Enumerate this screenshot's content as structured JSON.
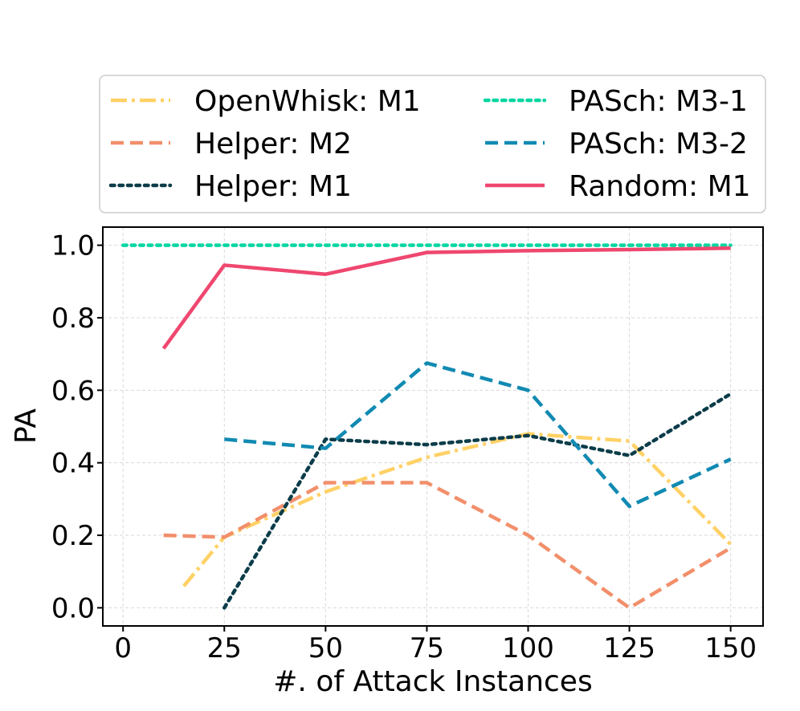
{
  "chart_data": {
    "type": "line",
    "title": "",
    "xlabel": "#. of Attack Instances",
    "ylabel": "PA",
    "xlim": [
      -5,
      158
    ],
    "ylim": [
      -0.05,
      1.05
    ],
    "xticks": [
      0,
      25,
      50,
      75,
      100,
      125,
      150
    ],
    "xtick_labels": [
      "0",
      "25",
      "50",
      "75",
      "100",
      "125",
      "150"
    ],
    "yticks": [
      0.0,
      0.2,
      0.4,
      0.6,
      0.8,
      1.0
    ],
    "ytick_labels": [
      "0.0",
      "0.2",
      "0.4",
      "0.6",
      "0.8",
      "1.0"
    ],
    "grid": true,
    "legend_position": "top, above plot, two columns",
    "series": [
      {
        "name": "OpenWhisk: M1",
        "color": "#FFD166",
        "style": "dashdot",
        "x": [
          15,
          25,
          50,
          75,
          100,
          125,
          150
        ],
        "y": [
          0.06,
          0.195,
          0.32,
          0.415,
          0.48,
          0.46,
          0.175
        ]
      },
      {
        "name": "Helper: M2",
        "color": "#F28F6B",
        "style": "dashed",
        "x": [
          10,
          25,
          50,
          75,
          100,
          125,
          150
        ],
        "y": [
          0.2,
          0.195,
          0.345,
          0.345,
          0.2,
          0.0,
          0.165
        ]
      },
      {
        "name": "Helper: M1",
        "color": "#0B3C49",
        "style": "dotted",
        "x": [
          25,
          50,
          75,
          100,
          125,
          150
        ],
        "y": [
          0.0,
          0.465,
          0.45,
          0.475,
          0.42,
          0.59
        ]
      },
      {
        "name": "PASch: M3-1",
        "color": "#06D6A0",
        "style": "dotted",
        "x": [
          0,
          25,
          50,
          75,
          100,
          125,
          150
        ],
        "y": [
          1.0,
          1.0,
          1.0,
          1.0,
          1.0,
          1.0,
          1.0
        ]
      },
      {
        "name": "PASch: M3-2",
        "color": "#118AB2",
        "style": "dashed",
        "x": [
          25,
          50,
          75,
          100,
          125,
          150
        ],
        "y": [
          0.465,
          0.44,
          0.675,
          0.6,
          0.28,
          0.41
        ]
      },
      {
        "name": "Random: M1",
        "color": "#EF476F",
        "style": "solid",
        "x": [
          10,
          25,
          50,
          75,
          100,
          125,
          150
        ],
        "y": [
          0.715,
          0.945,
          0.92,
          0.98,
          0.985,
          0.988,
          0.992
        ]
      }
    ]
  }
}
